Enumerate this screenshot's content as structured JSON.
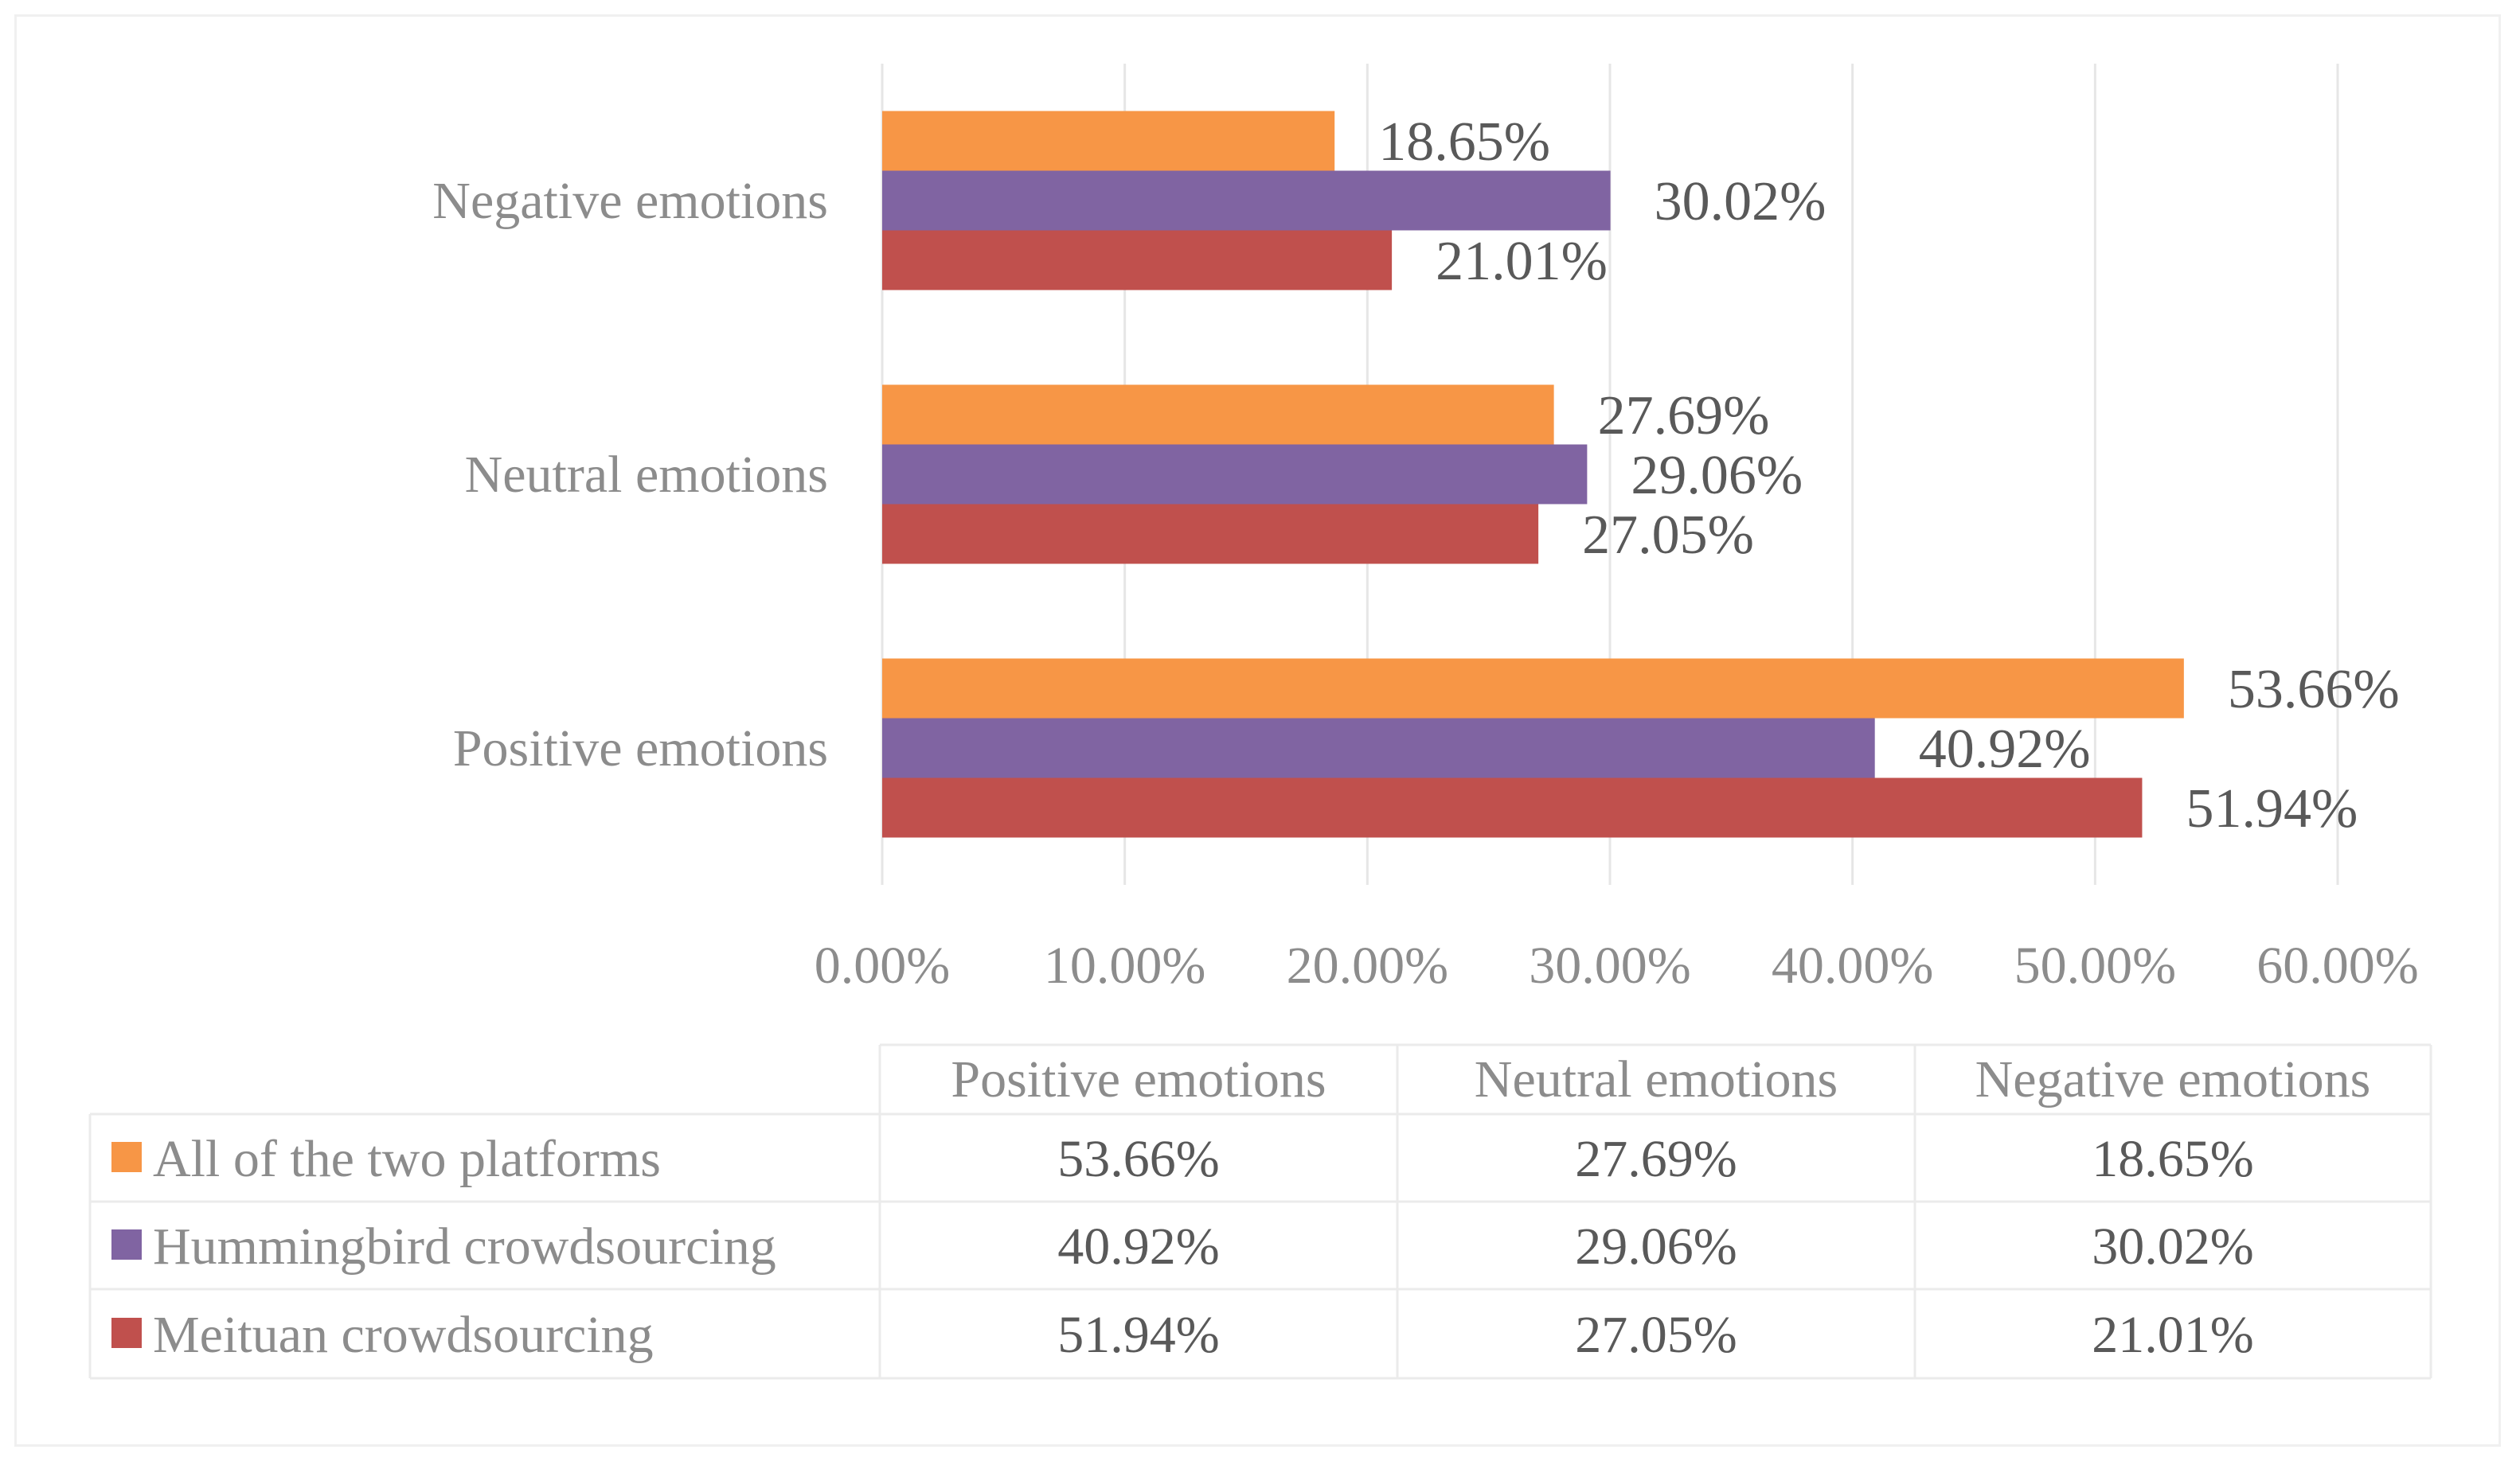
{
  "chart_data": {
    "type": "bar",
    "orientation": "horizontal",
    "categories": [
      "Positive emotions",
      "Neutral emotions",
      "Negative emotions"
    ],
    "series": [
      {
        "name": "All of the two platforms",
        "color": "#f79646",
        "values": [
          53.66,
          27.69,
          18.65
        ],
        "labels": [
          "53.66%",
          "27.69%",
          "18.65%"
        ]
      },
      {
        "name": "Hummingbird crowdsourcing",
        "color": "#8064a2",
        "values": [
          40.92,
          29.06,
          30.02
        ],
        "labels": [
          "40.92%",
          "29.06%",
          "30.02%"
        ]
      },
      {
        "name": "Meituan crowdsourcing",
        "color": "#c0504d",
        "values": [
          51.94,
          27.05,
          21.01
        ],
        "labels": [
          "51.94%",
          "27.05%",
          "21.01%"
        ]
      }
    ],
    "xlim": [
      0,
      60
    ],
    "xticks": [
      0,
      10,
      20,
      30,
      40,
      50,
      60
    ],
    "xtick_labels": [
      "0.00%",
      "10.00%",
      "20.00%",
      "30.00%",
      "40.00%",
      "50.00%",
      "60.00%"
    ],
    "grid": true,
    "legend": "data-table-below",
    "data_table": {
      "columns": [
        "Positive emotions",
        "Neutral emotions",
        "Negative emotions"
      ]
    }
  }
}
